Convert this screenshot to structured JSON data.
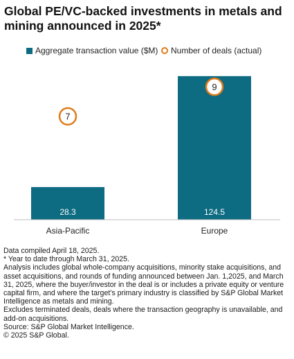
{
  "header": {
    "title": "Global PE/VC-backed investments in metals and mining announced in 2025*"
  },
  "legend": {
    "bar_label": "Aggregate transaction value ($M)",
    "marker_label": "Number of deals (actual)"
  },
  "colors": {
    "bar": "#0d6b82",
    "marker": "#e07b1a"
  },
  "chart_data": {
    "type": "bar",
    "categories": [
      "Asia-Pacific",
      "Europe"
    ],
    "series": [
      {
        "name": "Aggregate transaction value ($M)",
        "values": [
          28.3,
          124.5
        ],
        "labels": [
          "28.3",
          "124.5"
        ]
      },
      {
        "name": "Number of deals (actual)",
        "values": [
          7,
          9
        ],
        "labels": [
          "7",
          "9"
        ]
      }
    ],
    "ylim": [
      0,
      128
    ],
    "deals_ylim": [
      0,
      10
    ],
    "grid": false,
    "legend_position": "top"
  },
  "notes": [
    "Data compiled April 18, 2025.",
    "* Year to date through March 31, 2025.",
    "Analysis includes global whole-company acquisitions, minority stake acquisitions, and asset acquisitions, and rounds of funding announced between Jan. 1,2025, and March 31, 2025, where the buyer/investor in the deal is or includes a private equity or venture capital firm, and where the target’s primary industry is classified by S&P Global Market Intelligence as metals and mining.",
    "Excludes terminated deals, deals where the transaction geography is unavailable, and add-on acquisitions.",
    "Source: S&P Global Market Intelligence.",
    "© 2025 S&P Global."
  ]
}
